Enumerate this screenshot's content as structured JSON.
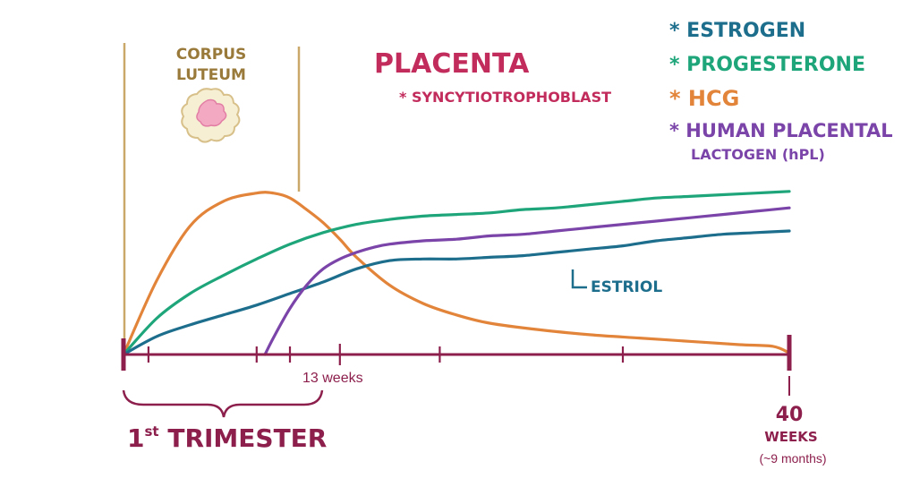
{
  "colors": {
    "estrogen": "#1d6e8d",
    "progesterone": "#1ea67a",
    "hcg": "#e2843a",
    "hpl": "#7a44a8",
    "timeline": "#8c1f4c",
    "placenta": "#c22c5c",
    "corpus_luteum_line": "#c9a86a",
    "corpus_luteum_text": "#9a7a3a"
  },
  "labels": {
    "corpus_luteum_line1": "CORPUS",
    "corpus_luteum_line2": "LUTEUM",
    "placenta": "PLACENTA",
    "syncytiotrophoblast": "* SYNCYTIOTROPHOBLAST",
    "estriol": "ESTRIOL",
    "weeks_13": "13 weeks",
    "trimester": "1st TRIMESTER",
    "weeks_40_num": "40",
    "weeks_40_word": "WEEKS",
    "months_note": "(~9 months)"
  },
  "legend": [
    {
      "key": "estrogen",
      "text": "* ESTROGEN"
    },
    {
      "key": "progesterone",
      "text": "* PROGESTERONE"
    },
    {
      "key": "hcg",
      "text": "* HCG"
    },
    {
      "key": "hpl",
      "text": "* HUMAN PLACENTAL",
      "text2": "LACTOGEN (hPL)"
    }
  ],
  "chart_data": {
    "type": "line",
    "x_unit": "weeks",
    "xlim": [
      0,
      40
    ],
    "ylim": [
      0,
      100
    ],
    "x_ticks_labeled": [
      {
        "x": 13,
        "label": "13 weeks"
      },
      {
        "x": 40,
        "label": "40 WEEKS"
      }
    ],
    "series": [
      {
        "name": "HCG",
        "key": "hcg",
        "x": [
          0,
          2,
          4,
          6,
          8,
          9,
          10,
          11,
          12,
          13,
          14,
          16,
          18,
          20,
          22,
          25,
          28,
          31,
          34,
          37,
          39,
          40
        ],
        "y": [
          0,
          45,
          78,
          93,
          98,
          98,
          95,
          88,
          80,
          70,
          59,
          42,
          31,
          24,
          19,
          15,
          12,
          10,
          8,
          6,
          5,
          1
        ]
      },
      {
        "name": "Progesterone",
        "key": "progesterone",
        "x": [
          0,
          2,
          4,
          6,
          8,
          10,
          12,
          14,
          16,
          18,
          20,
          22,
          24,
          26,
          28,
          30,
          32,
          34,
          36,
          38,
          40
        ],
        "y": [
          0,
          22,
          37,
          48,
          58,
          67,
          74,
          79,
          82,
          84,
          85,
          86,
          88,
          89,
          91,
          93,
          95,
          96,
          97,
          98,
          99
        ]
      },
      {
        "name": "Estrogen",
        "key": "estrogen",
        "x": [
          0,
          2,
          4,
          6,
          8,
          10,
          12,
          14,
          16,
          18,
          20,
          22,
          24,
          26,
          28,
          30,
          32,
          34,
          36,
          38,
          40
        ],
        "y": [
          0,
          11,
          18,
          24,
          30,
          37,
          44,
          52,
          57,
          58,
          58,
          59,
          60,
          62,
          64,
          66,
          69,
          71,
          73,
          74,
          75
        ]
      },
      {
        "name": "hPL",
        "key": "hpl",
        "x": [
          8.5,
          9,
          10,
          11,
          12,
          13,
          14,
          15,
          16,
          18,
          20,
          22,
          24,
          26,
          28,
          30,
          32,
          34,
          36,
          38,
          40
        ],
        "y": [
          0,
          10,
          28,
          42,
          52,
          58,
          62,
          65,
          67,
          69,
          70,
          72,
          73,
          75,
          77,
          79,
          81,
          83,
          85,
          87,
          89
        ]
      }
    ]
  }
}
